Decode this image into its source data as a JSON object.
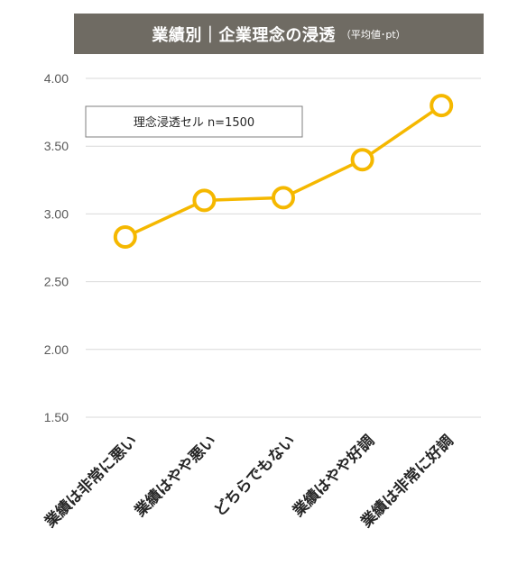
{
  "chart_data": {
    "type": "line",
    "title": "業績別｜企業理念の浸透",
    "subtitle": "（平均値･pt）",
    "categories": [
      "業績は非常に悪い",
      "業績はやや悪い",
      "どちらでもない",
      "業績はやや好調",
      "業績は非常に好調"
    ],
    "series": [
      {
        "name": "理念浸透セル n=1500",
        "values": [
          2.83,
          3.1,
          3.12,
          3.4,
          3.8
        ],
        "color": "#f5b800"
      }
    ],
    "yticks": [
      "1.50",
      "2.00",
      "2.50",
      "3.00",
      "3.50",
      "4.00"
    ],
    "ylim": [
      1.5,
      4.0
    ],
    "grid": true,
    "legend_position": "top-left"
  }
}
